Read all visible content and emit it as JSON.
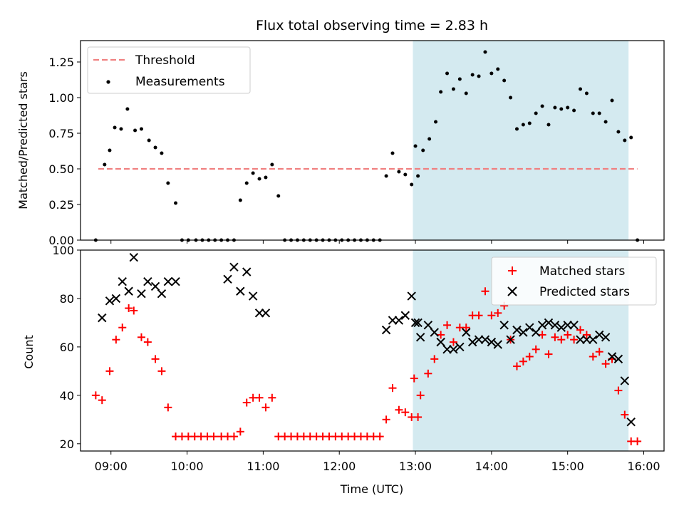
{
  "chart_data": [
    {
      "type": "scatter",
      "title": "Flux total observing time = 2.83 h",
      "xlabel": "",
      "ylabel": "Matched/Predicted stars",
      "xlim": [
        "08:36",
        "16:16"
      ],
      "ylim": [
        0,
        1.4
      ],
      "yticks": [
        0.0,
        0.25,
        0.5,
        0.75,
        1.0,
        1.25
      ],
      "ytick_labels": [
        "0.00",
        "0.25",
        "0.50",
        "0.75",
        "1.00",
        "1.25"
      ],
      "highlight_span": [
        "12:58",
        "15:48"
      ],
      "highlight_color": "#d4eaf0",
      "threshold": {
        "name": "Threshold",
        "value": 0.5,
        "x_range": [
          "08:50",
          "15:55"
        ],
        "color": "#f08080",
        "style": "dashed"
      },
      "legend": {
        "position": "upper-left",
        "entries": [
          "Threshold",
          "Measurements"
        ]
      },
      "series": [
        {
          "name": "Measurements",
          "marker": "dot",
          "color": "#000000",
          "points": [
            [
              "08:48",
              0.0
            ],
            [
              "08:55",
              0.53
            ],
            [
              "08:59",
              0.63
            ],
            [
              "09:03",
              0.79
            ],
            [
              "09:08",
              0.78
            ],
            [
              "09:13",
              0.92
            ],
            [
              "09:19",
              0.77
            ],
            [
              "09:24",
              0.78
            ],
            [
              "09:30",
              0.7
            ],
            [
              "09:35",
              0.65
            ],
            [
              "09:40",
              0.61
            ],
            [
              "09:45",
              0.4
            ],
            [
              "09:51",
              0.26
            ],
            [
              "09:56",
              0.0
            ],
            [
              "10:01",
              0.0
            ],
            [
              "10:07",
              0.0
            ],
            [
              "10:12",
              0.0
            ],
            [
              "10:17",
              0.0
            ],
            [
              "10:22",
              0.0
            ],
            [
              "10:27",
              0.0
            ],
            [
              "10:32",
              0.0
            ],
            [
              "10:37",
              0.0
            ],
            [
              "10:42",
              0.28
            ],
            [
              "10:47",
              0.4
            ],
            [
              "10:52",
              0.47
            ],
            [
              "10:57",
              0.43
            ],
            [
              "11:02",
              0.44
            ],
            [
              "11:07",
              0.53
            ],
            [
              "11:12",
              0.31
            ],
            [
              "11:17",
              0.0
            ],
            [
              "11:22",
              0.0
            ],
            [
              "11:27",
              0.0
            ],
            [
              "11:32",
              0.0
            ],
            [
              "11:37",
              0.0
            ],
            [
              "11:42",
              0.0
            ],
            [
              "11:47",
              0.0
            ],
            [
              "11:52",
              0.0
            ],
            [
              "11:57",
              0.0
            ],
            [
              "12:02",
              0.0
            ],
            [
              "12:07",
              0.0
            ],
            [
              "12:12",
              0.0
            ],
            [
              "12:17",
              0.0
            ],
            [
              "12:22",
              0.0
            ],
            [
              "12:27",
              0.0
            ],
            [
              "12:32",
              0.0
            ],
            [
              "12:37",
              0.45
            ],
            [
              "12:42",
              0.61
            ],
            [
              "12:47",
              0.48
            ],
            [
              "12:52",
              0.46
            ],
            [
              "12:57",
              0.39
            ],
            [
              "13:02",
              0.45
            ],
            [
              "13:00",
              0.66
            ],
            [
              "13:06",
              0.63
            ],
            [
              "13:11",
              0.71
            ],
            [
              "13:16",
              0.83
            ],
            [
              "13:20",
              1.04
            ],
            [
              "13:25",
              1.17
            ],
            [
              "13:30",
              1.06
            ],
            [
              "13:35",
              1.13
            ],
            [
              "13:40",
              1.03
            ],
            [
              "13:45",
              1.16
            ],
            [
              "13:50",
              1.15
            ],
            [
              "13:55",
              1.32
            ],
            [
              "14:00",
              1.17
            ],
            [
              "14:05",
              1.2
            ],
            [
              "14:10",
              1.12
            ],
            [
              "14:15",
              1.0
            ],
            [
              "14:20",
              0.78
            ],
            [
              "14:25",
              0.81
            ],
            [
              "14:30",
              0.82
            ],
            [
              "14:35",
              0.89
            ],
            [
              "14:40",
              0.94
            ],
            [
              "14:45",
              0.81
            ],
            [
              "14:50",
              0.93
            ],
            [
              "14:55",
              0.92
            ],
            [
              "15:00",
              0.93
            ],
            [
              "15:05",
              0.91
            ],
            [
              "15:10",
              1.06
            ],
            [
              "15:15",
              1.03
            ],
            [
              "15:20",
              0.89
            ],
            [
              "15:25",
              0.89
            ],
            [
              "15:30",
              0.83
            ],
            [
              "15:35",
              0.98
            ],
            [
              "15:40",
              0.76
            ],
            [
              "15:45",
              0.7
            ],
            [
              "15:50",
              0.72
            ],
            [
              "15:55",
              0.0
            ]
          ]
        }
      ]
    },
    {
      "type": "scatter",
      "title": "",
      "xlabel": "Time (UTC)",
      "ylabel": "Count",
      "xlim": [
        "08:36",
        "16:16"
      ],
      "ylim": [
        17,
        100
      ],
      "yticks": [
        20,
        40,
        60,
        80,
        100
      ],
      "xticks": [
        "09:00",
        "10:00",
        "11:00",
        "12:00",
        "13:00",
        "14:00",
        "15:00",
        "16:00"
      ],
      "highlight_span": [
        "12:58",
        "15:48"
      ],
      "highlight_color": "#d4eaf0",
      "legend": {
        "position": "upper-right",
        "entries": [
          "Matched stars",
          "Predicted stars"
        ]
      },
      "series": [
        {
          "name": "Matched stars",
          "marker": "plus",
          "color": "#ff0000",
          "points": [
            [
              "08:48",
              40
            ],
            [
              "08:53",
              38
            ],
            [
              "08:59",
              50
            ],
            [
              "09:04",
              63
            ],
            [
              "09:09",
              68
            ],
            [
              "09:14",
              76
            ],
            [
              "09:18",
              75
            ],
            [
              "09:24",
              64
            ],
            [
              "09:29",
              62
            ],
            [
              "09:35",
              55
            ],
            [
              "09:40",
              50
            ],
            [
              "09:45",
              35
            ],
            [
              "09:51",
              23
            ],
            [
              "09:56",
              23
            ],
            [
              "10:01",
              23
            ],
            [
              "10:06",
              23
            ],
            [
              "10:11",
              23
            ],
            [
              "10:16",
              23
            ],
            [
              "10:21",
              23
            ],
            [
              "10:27",
              23
            ],
            [
              "10:32",
              23
            ],
            [
              "10:37",
              23
            ],
            [
              "10:42",
              25
            ],
            [
              "10:47",
              37
            ],
            [
              "10:52",
              39
            ],
            [
              "10:57",
              39
            ],
            [
              "11:02",
              35
            ],
            [
              "11:07",
              39
            ],
            [
              "11:12",
              23
            ],
            [
              "11:17",
              23
            ],
            [
              "11:22",
              23
            ],
            [
              "11:27",
              23
            ],
            [
              "11:32",
              23
            ],
            [
              "11:37",
              23
            ],
            [
              "11:42",
              23
            ],
            [
              "11:47",
              23
            ],
            [
              "11:52",
              23
            ],
            [
              "11:57",
              23
            ],
            [
              "12:02",
              23
            ],
            [
              "12:07",
              23
            ],
            [
              "12:12",
              23
            ],
            [
              "12:17",
              23
            ],
            [
              "12:22",
              23
            ],
            [
              "12:27",
              23
            ],
            [
              "12:32",
              23
            ],
            [
              "12:37",
              30
            ],
            [
              "12:42",
              43
            ],
            [
              "12:47",
              34
            ],
            [
              "12:52",
              33
            ],
            [
              "12:57",
              31
            ],
            [
              "13:02",
              31
            ],
            [
              "12:59",
              47
            ],
            [
              "13:04",
              40
            ],
            [
              "13:10",
              49
            ],
            [
              "13:15",
              55
            ],
            [
              "13:20",
              65
            ],
            [
              "13:25",
              69
            ],
            [
              "13:30",
              62
            ],
            [
              "13:35",
              68
            ],
            [
              "13:40",
              68
            ],
            [
              "13:45",
              73
            ],
            [
              "13:50",
              73
            ],
            [
              "13:55",
              83
            ],
            [
              "14:00",
              73
            ],
            [
              "14:05",
              74
            ],
            [
              "14:10",
              77
            ],
            [
              "14:15",
              63
            ],
            [
              "14:20",
              52
            ],
            [
              "14:25",
              54
            ],
            [
              "14:30",
              56
            ],
            [
              "14:35",
              59
            ],
            [
              "14:40",
              65
            ],
            [
              "14:45",
              57
            ],
            [
              "14:50",
              64
            ],
            [
              "14:55",
              63
            ],
            [
              "15:00",
              65
            ],
            [
              "15:05",
              63
            ],
            [
              "15:10",
              67
            ],
            [
              "15:15",
              65
            ],
            [
              "15:20",
              56
            ],
            [
              "15:25",
              58
            ],
            [
              "15:30",
              53
            ],
            [
              "15:35",
              55
            ],
            [
              "15:40",
              42
            ],
            [
              "15:45",
              32
            ],
            [
              "15:50",
              21
            ],
            [
              "15:55",
              21
            ]
          ]
        },
        {
          "name": "Predicted stars",
          "marker": "cross",
          "color": "#000000",
          "points": [
            [
              "08:53",
              72
            ],
            [
              "08:59",
              79
            ],
            [
              "09:04",
              80
            ],
            [
              "09:09",
              87
            ],
            [
              "09:14",
              83
            ],
            [
              "09:18",
              97
            ],
            [
              "09:24",
              82
            ],
            [
              "09:29",
              87
            ],
            [
              "09:35",
              85
            ],
            [
              "09:40",
              82
            ],
            [
              "09:45",
              87
            ],
            [
              "09:51",
              87
            ],
            [
              "10:32",
              88
            ],
            [
              "10:37",
              93
            ],
            [
              "10:42",
              83
            ],
            [
              "10:47",
              91
            ],
            [
              "10:52",
              81
            ],
            [
              "10:57",
              74
            ],
            [
              "11:02",
              74
            ],
            [
              "12:37",
              67
            ],
            [
              "12:42",
              71
            ],
            [
              "12:47",
              71
            ],
            [
              "12:52",
              73
            ],
            [
              "12:57",
              81
            ],
            [
              "13:02",
              70
            ],
            [
              "13:00",
              70
            ],
            [
              "13:04",
              64
            ],
            [
              "13:10",
              69
            ],
            [
              "13:15",
              66
            ],
            [
              "13:20",
              62
            ],
            [
              "13:25",
              59
            ],
            [
              "13:30",
              59
            ],
            [
              "13:35",
              60
            ],
            [
              "13:40",
              66
            ],
            [
              "13:45",
              62
            ],
            [
              "13:50",
              63
            ],
            [
              "13:55",
              63
            ],
            [
              "14:00",
              62
            ],
            [
              "14:05",
              61
            ],
            [
              "14:10",
              69
            ],
            [
              "14:15",
              63
            ],
            [
              "14:20",
              67
            ],
            [
              "14:25",
              66
            ],
            [
              "14:30",
              68
            ],
            [
              "14:35",
              66
            ],
            [
              "14:40",
              69
            ],
            [
              "14:45",
              70
            ],
            [
              "14:50",
              69
            ],
            [
              "14:55",
              68
            ],
            [
              "15:00",
              69
            ],
            [
              "15:05",
              69
            ],
            [
              "15:10",
              63
            ],
            [
              "15:15",
              63
            ],
            [
              "15:20",
              63
            ],
            [
              "15:25",
              65
            ],
            [
              "15:30",
              64
            ],
            [
              "15:35",
              56
            ],
            [
              "15:40",
              55
            ],
            [
              "15:45",
              46
            ],
            [
              "15:50",
              29
            ]
          ]
        }
      ]
    }
  ]
}
